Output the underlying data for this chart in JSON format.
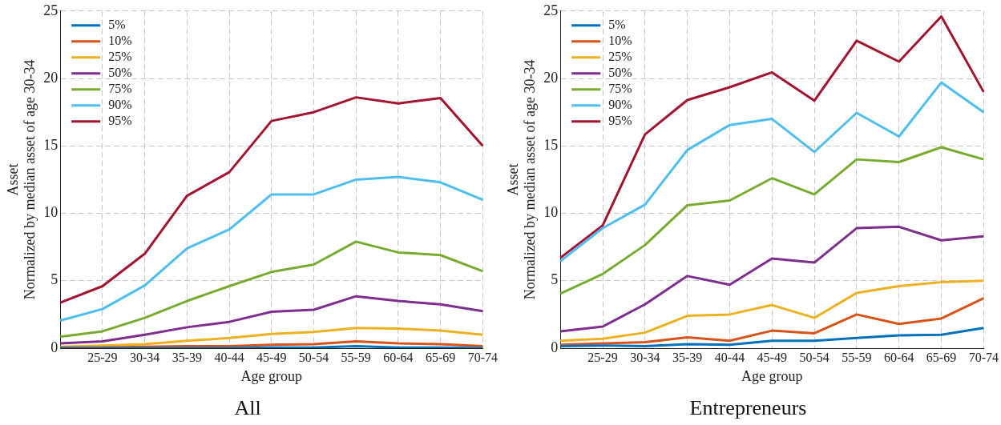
{
  "chart_data": [
    {
      "type": "line",
      "title": "All",
      "xlabel": "Age group",
      "ylabel": "Asset\nNormalized by median asset of age 30-34",
      "categories": [
        null,
        "25-29",
        "30-34",
        "35-39",
        "40-44",
        "45-49",
        "50-54",
        "55-59",
        "60-64",
        "65-69",
        "70-74"
      ],
      "ylim": [
        0,
        25
      ],
      "yticks": [
        0,
        5,
        10,
        15,
        20,
        25
      ],
      "grid": true,
      "legend": "top left",
      "marker": "none",
      "line_style": "solid",
      "series": [
        {
          "name": "5%",
          "color": "#0072bd",
          "values": [
            0,
            0,
            0,
            0,
            0,
            0.05,
            0.05,
            0.15,
            0.05,
            0.05,
            0
          ]
        },
        {
          "name": "10%",
          "color": "#d95319",
          "values": [
            0.05,
            0.05,
            0.1,
            0.15,
            0.15,
            0.25,
            0.3,
            0.5,
            0.35,
            0.3,
            0.15
          ]
        },
        {
          "name": "25%",
          "color": "#edb120",
          "values": [
            0.1,
            0.2,
            0.3,
            0.55,
            0.75,
            1.05,
            1.2,
            1.5,
            1.45,
            1.3,
            1.0
          ]
        },
        {
          "name": "50%",
          "color": "#7e2f8e",
          "values": [
            0.35,
            0.5,
            1.0,
            1.55,
            1.95,
            2.7,
            2.85,
            3.85,
            3.5,
            3.25,
            2.75
          ]
        },
        {
          "name": "75%",
          "color": "#77ac30",
          "values": [
            0.85,
            1.25,
            2.25,
            3.5,
            4.6,
            5.65,
            6.2,
            7.9,
            7.1,
            6.9,
            5.7
          ]
        },
        {
          "name": "90%",
          "color": "#4dbeee",
          "values": [
            2.05,
            2.9,
            4.65,
            7.4,
            8.8,
            11.4,
            11.4,
            12.5,
            12.7,
            12.3,
            11.0
          ]
        },
        {
          "name": "95%",
          "color": "#a2142f",
          "values": [
            3.37,
            4.6,
            7.0,
            11.3,
            13.05,
            16.85,
            17.5,
            18.6,
            18.15,
            18.55,
            15.0
          ]
        }
      ]
    },
    {
      "type": "line",
      "title": "Entrepreneurs",
      "xlabel": "Age group",
      "ylabel": "Asset\nNormalized by median asset of age 30-34",
      "categories": [
        null,
        "25-29",
        "30-34",
        "35-39",
        "40-44",
        "45-49",
        "50-54",
        "55-59",
        "60-64",
        "65-69",
        "70-74"
      ],
      "ylim": [
        0,
        25
      ],
      "yticks": [
        0,
        5,
        10,
        15,
        20,
        25
      ],
      "grid": true,
      "legend": "top left",
      "marker": "none",
      "line_style": "solid",
      "series": [
        {
          "name": "5%",
          "color": "#0072bd",
          "values": [
            0.15,
            0.2,
            0.15,
            0.3,
            0.25,
            0.55,
            0.55,
            0.75,
            0.95,
            1.0,
            1.5
          ]
        },
        {
          "name": "10%",
          "color": "#d95319",
          "values": [
            0.25,
            0.35,
            0.45,
            0.8,
            0.55,
            1.3,
            1.1,
            2.5,
            1.8,
            2.2,
            3.7
          ]
        },
        {
          "name": "25%",
          "color": "#edb120",
          "values": [
            0.55,
            0.7,
            1.15,
            2.4,
            2.5,
            3.2,
            2.25,
            4.1,
            4.6,
            4.9,
            5.0
          ]
        },
        {
          "name": "50%",
          "color": "#7e2f8e",
          "values": [
            1.25,
            1.6,
            3.25,
            5.35,
            4.7,
            6.65,
            6.35,
            8.9,
            9.0,
            8.0,
            8.3
          ]
        },
        {
          "name": "75%",
          "color": "#77ac30",
          "values": [
            4.05,
            5.5,
            7.65,
            10.6,
            10.95,
            12.6,
            11.4,
            14.0,
            13.8,
            14.9,
            14.0
          ]
        },
        {
          "name": "90%",
          "color": "#4dbeee",
          "values": [
            6.45,
            8.9,
            10.65,
            14.7,
            16.55,
            17.0,
            14.55,
            17.45,
            15.7,
            19.7,
            17.5
          ]
        },
        {
          "name": "95%",
          "color": "#a2142f",
          "values": [
            6.7,
            9.1,
            15.85,
            18.4,
            19.35,
            20.45,
            18.35,
            22.8,
            21.25,
            24.6,
            19.0
          ]
        }
      ]
    }
  ]
}
